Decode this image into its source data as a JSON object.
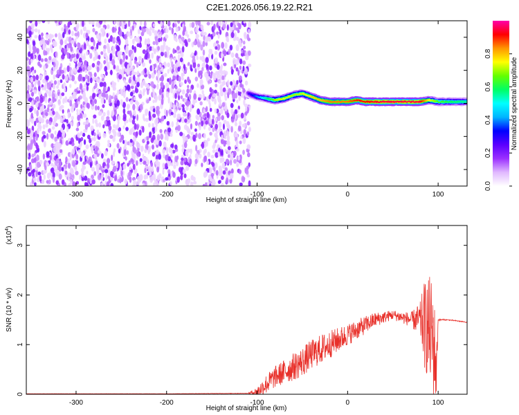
{
  "figure": {
    "title": "C2E1.2026.056.19.22.R21"
  },
  "chart_data": [
    {
      "type": "heatmap",
      "name": "spectrogram",
      "xlabel": "Height of straight line (km)",
      "ylabel": "Frequency (Hz)",
      "xlim": [
        -355,
        132
      ],
      "ylim": [
        -50,
        50
      ],
      "x_ticks": [
        -300,
        -200,
        -100,
        0,
        100
      ],
      "x_tick_labels": [
        "-300",
        "-200",
        "-100",
        "0",
        "100"
      ],
      "y_ticks": [
        -40,
        -20,
        0,
        20,
        40
      ],
      "y_tick_labels": [
        "-40",
        "-20",
        "0",
        "20",
        "40"
      ],
      "noise_region": {
        "x_start": -355,
        "x_end": -108,
        "level": 0.1
      },
      "ridge": {
        "description": "frequency of the dominant signal vs. height",
        "x": [
          -110,
          -100,
          -90,
          -80,
          -70,
          -60,
          -50,
          -40,
          -30,
          -20,
          -10,
          0,
          10,
          20,
          40,
          60,
          80,
          90,
          100,
          110,
          132
        ],
        "frequency": [
          6,
          4,
          3,
          2,
          3,
          5,
          6,
          4,
          2,
          1,
          1,
          1,
          2,
          1,
          1,
          1,
          1,
          2,
          1,
          1,
          1
        ],
        "amplitude": [
          0.25,
          0.4,
          0.55,
          0.7,
          0.75,
          0.7,
          0.72,
          0.78,
          0.8,
          0.85,
          0.85,
          0.85,
          0.9,
          0.92,
          0.95,
          0.95,
          0.95,
          0.75,
          0.65,
          0.6,
          0.55
        ]
      },
      "colorbar": {
        "label": "Normalized spectral amplitude",
        "range": [
          0,
          1
        ],
        "ticks": [
          0.0,
          0.2,
          0.4,
          0.6,
          0.8
        ],
        "tick_labels": [
          "0.0",
          "0.2",
          "0.4",
          "0.6",
          "0.8"
        ],
        "colors": [
          "#ffffff",
          "#e0b8ff",
          "#9b30ff",
          "#5a00ff",
          "#0000ff",
          "#00b4ff",
          "#00ffff",
          "#00ff64",
          "#64ff00",
          "#ffff00",
          "#ff9600",
          "#ff0000",
          "#ff00aa"
        ]
      }
    },
    {
      "type": "line",
      "name": "snr",
      "xlabel": "Height of straight line (km)",
      "ylabel": "SNR (10 * v/v)",
      "y_scale_label": "(x10",
      "y_scale_exponent": "4",
      "y_scale_suffix": ")",
      "xlim": [
        -355,
        132
      ],
      "ylim": [
        0,
        3.4
      ],
      "x_ticks": [
        -300,
        -200,
        -100,
        0,
        100
      ],
      "x_tick_labels": [
        "-300",
        "-200",
        "-100",
        "0",
        "100"
      ],
      "y_ticks": [
        0,
        1,
        2,
        3
      ],
      "y_tick_labels": [
        "0",
        "1",
        "2",
        "3"
      ],
      "color": "#e8302a",
      "series": [
        {
          "name": "SNR",
          "x": [
            -355,
            -200,
            -110,
            -100,
            -90,
            -80,
            -70,
            -60,
            -50,
            -40,
            -30,
            -20,
            -10,
            0,
            10,
            20,
            30,
            40,
            50,
            60,
            70,
            80,
            85,
            90,
            95,
            98,
            100,
            110,
            120,
            132
          ],
          "y": [
            0.01,
            0.01,
            0.02,
            0.05,
            0.2,
            0.35,
            0.45,
            0.55,
            0.65,
            0.8,
            0.9,
            1.0,
            1.1,
            1.2,
            1.3,
            1.4,
            1.5,
            1.55,
            1.6,
            1.55,
            1.5,
            1.5,
            1.4,
            1.3,
            1.1,
            0.4,
            1.5,
            1.5,
            1.48,
            1.45
          ],
          "noise_amplitude": [
            0.002,
            0.002,
            0.004,
            0.1,
            0.2,
            0.22,
            0.25,
            0.28,
            0.3,
            0.3,
            0.3,
            0.28,
            0.25,
            0.22,
            0.2,
            0.18,
            0.15,
            0.12,
            0.1,
            0.12,
            0.15,
            0.35,
            0.9,
            1.1,
            1.2,
            0.6,
            0.02,
            0.01,
            0.01,
            0.01
          ]
        }
      ]
    }
  ]
}
